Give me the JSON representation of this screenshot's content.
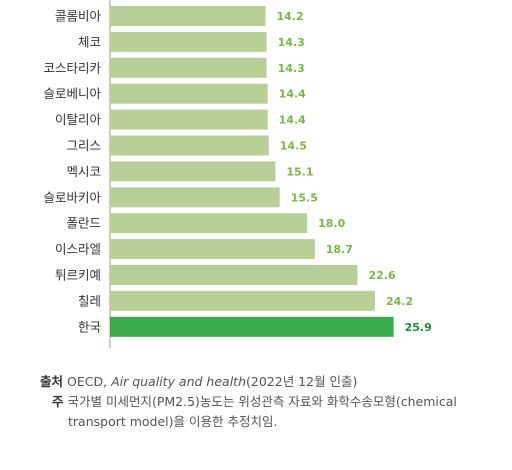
{
  "chart_data": {
    "type": "bar",
    "orientation": "horizontal",
    "categories": [
      "콜롬비아",
      "체코",
      "코스타리카",
      "슬로베니아",
      "이탈리아",
      "그리스",
      "멕시코",
      "슬로바키아",
      "폴란드",
      "이스라엘",
      "튀르키예",
      "칠레",
      "한국"
    ],
    "values": [
      14.2,
      14.3,
      14.3,
      14.4,
      14.4,
      14.5,
      15.1,
      15.5,
      18.0,
      18.7,
      22.6,
      24.2,
      25.9
    ],
    "value_labels": [
      "14.2",
      "14.3",
      "14.3",
      "14.4",
      "14.4",
      "14.5",
      "15.1",
      "15.5",
      "18.0",
      "18.7",
      "22.6",
      "24.2",
      "25.9"
    ],
    "highlight_category": "한국",
    "colors": {
      "bar": "#b8cf98",
      "highlight_bar": "#3aab4b",
      "value_label": "#7ab648",
      "highlight_value_label": "#1f8f3a"
    },
    "grid": false,
    "legend": "none"
  },
  "footer": {
    "source_label": "출처",
    "source_text": "OECD,",
    "source_title": "Air quality and health",
    "source_date": "(2022년 12월 인출)",
    "note_label": "주",
    "note_line1": "국가별 미세먼지(PM2.5)농도는 위성관측 자료와 화학수송모형(chemical",
    "note_line2": "transport model)을 이용한 추정치임."
  }
}
